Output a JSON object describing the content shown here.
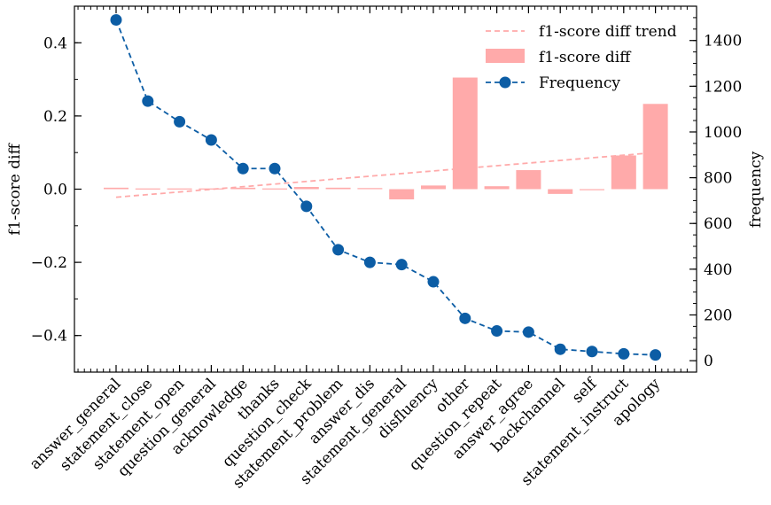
{
  "chart_data": {
    "type": "bar",
    "categories": [
      "answer_general",
      "statement_close",
      "statement_open",
      "question_general",
      "acknowledge",
      "thanks",
      "question_check",
      "statement_problem",
      "answer_dis",
      "statement_general",
      "disfluency",
      "other",
      "question_repeat",
      "answer_agree",
      "backchannel",
      "self",
      "statement_instruct",
      "apology"
    ],
    "series": [
      {
        "name": "f1-score diff",
        "type": "bar",
        "axis": "left",
        "color": "#ffaaaa",
        "values": [
          0.004,
          0.002,
          0.002,
          0.002,
          0.004,
          0.002,
          0.006,
          0.004,
          0.003,
          -0.028,
          0.01,
          0.305,
          0.008,
          0.052,
          -0.013,
          0.0,
          0.092,
          0.233
        ]
      },
      {
        "name": "f1-score diff trend",
        "type": "line",
        "axis": "left",
        "style": "dashed",
        "color": "#ffaaaa",
        "x": [
          0,
          17
        ],
        "values": [
          -0.022,
          0.1
        ]
      },
      {
        "name": "Frequency",
        "type": "line",
        "axis": "right",
        "style": "dashed",
        "marker": "circle",
        "color": "#0c5da5",
        "values": [
          1490,
          1135,
          1045,
          965,
          840,
          840,
          675,
          485,
          430,
          420,
          345,
          185,
          130,
          125,
          50,
          40,
          30,
          25
        ]
      }
    ],
    "ylabel": "f1-score diff",
    "ylim": [
      -0.5,
      0.5
    ],
    "yticks": [
      -0.4,
      -0.2,
      0.0,
      0.2,
      0.4
    ],
    "ytick_labels": [
      "−0.4",
      "−0.2",
      "0.0",
      "0.2",
      "0.4"
    ],
    "y2label": "frequency",
    "y2lim": [
      -50,
      1550
    ],
    "y2ticks": [
      0,
      200,
      400,
      600,
      800,
      1000,
      1200,
      1400
    ],
    "grid": false,
    "legend": "top-right"
  }
}
